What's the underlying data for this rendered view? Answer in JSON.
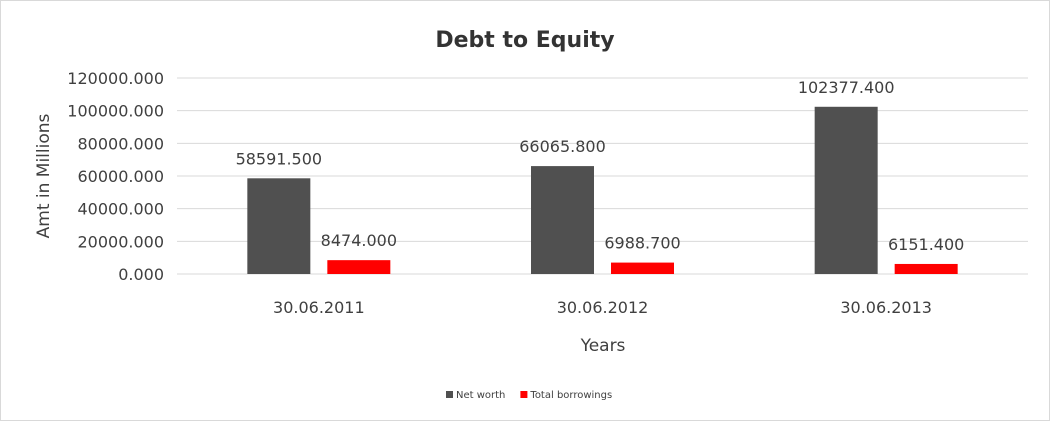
{
  "chart_data": {
    "type": "bar",
    "title": "Debt to Equity",
    "xlabel": "Years",
    "ylabel": "Amt in Millions",
    "categories": [
      "30.06.2011",
      "30.06.2012",
      "30.06.2013"
    ],
    "series": [
      {
        "name": "Net worth",
        "color": "#505050",
        "values": [
          58591.5,
          66065.8,
          102377.4
        ],
        "labels": [
          "58591.500",
          "66065.800",
          "102377.400"
        ]
      },
      {
        "name": "Total borrowings",
        "color": "#ff0000",
        "values": [
          8474.0,
          6988.7,
          6151.4
        ],
        "labels": [
          "8474.000",
          "6988.700",
          "6151.400"
        ]
      }
    ],
    "ylim": [
      0,
      120000
    ],
    "yticks": [
      "0.000",
      "20000.000",
      "40000.000",
      "60000.000",
      "80000.000",
      "100000.000",
      "120000.000"
    ],
    "grid": true,
    "legend_position": "bottom"
  }
}
